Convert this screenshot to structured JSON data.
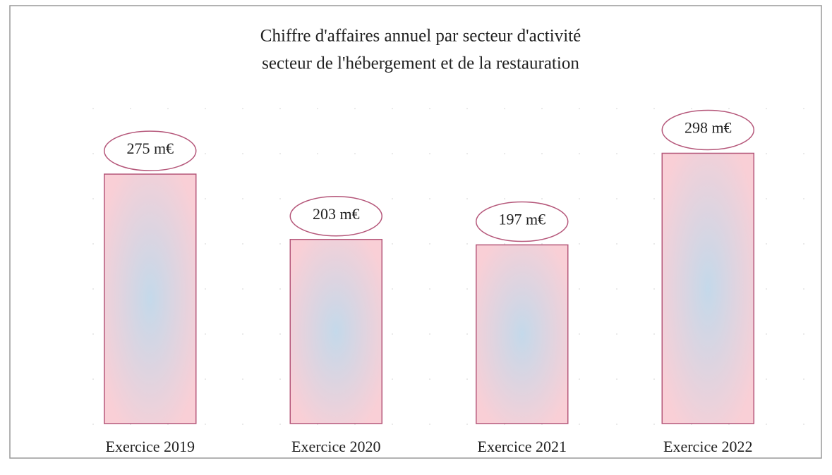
{
  "chart_data": {
    "type": "bar",
    "title": "Chiffre d'affaires annuel par secteur d'activité",
    "subtitle": "secteur de l'hébergement et de la restauration",
    "categories": [
      "Exercice 2019",
      "Exercice 2020",
      "Exercice 2021",
      "Exercice 2022"
    ],
    "values": [
      275,
      203,
      197,
      298
    ],
    "value_labels": [
      "275 m€",
      "203 m€",
      "197 m€",
      "298 m€"
    ],
    "color": "#f7c7cf"
  }
}
